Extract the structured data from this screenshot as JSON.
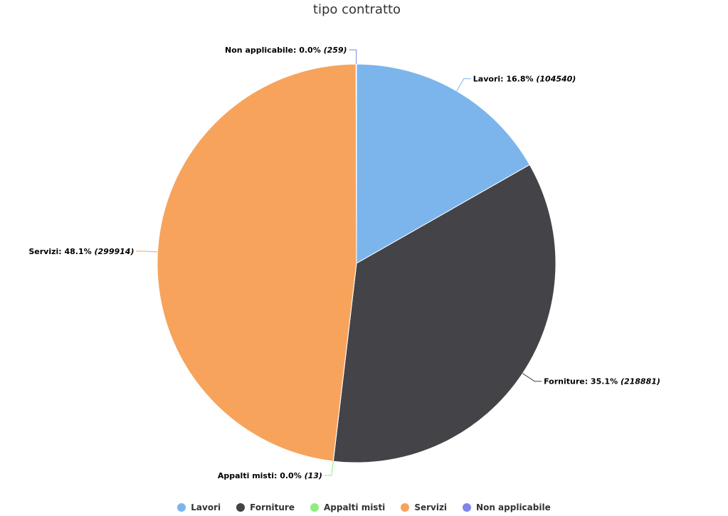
{
  "chart_data": {
    "type": "pie",
    "title": "tipo contratto",
    "slices": [
      {
        "name": "Lavori",
        "percent": 16.8,
        "value": 104540,
        "percent_label": "16.8%",
        "value_label": "(104540)",
        "color": "#7cb5ec"
      },
      {
        "name": "Forniture",
        "percent": 35.1,
        "value": 218881,
        "percent_label": "35.1%",
        "value_label": "(218881)",
        "color": "#434348"
      },
      {
        "name": "Appalti misti",
        "percent": 0.0,
        "value": 13,
        "percent_label": "0.0%",
        "value_label": "(13)",
        "color": "#90ed7d"
      },
      {
        "name": "Servizi",
        "percent": 48.1,
        "value": 299914,
        "percent_label": "48.1%",
        "value_label": "(299914)",
        "color": "#f7a35c"
      },
      {
        "name": "Non applicabile",
        "percent": 0.0,
        "value": 259,
        "percent_label": "0.0%",
        "value_label": "(259)",
        "color": "#8085e9"
      }
    ],
    "legend_position": "bottom"
  }
}
